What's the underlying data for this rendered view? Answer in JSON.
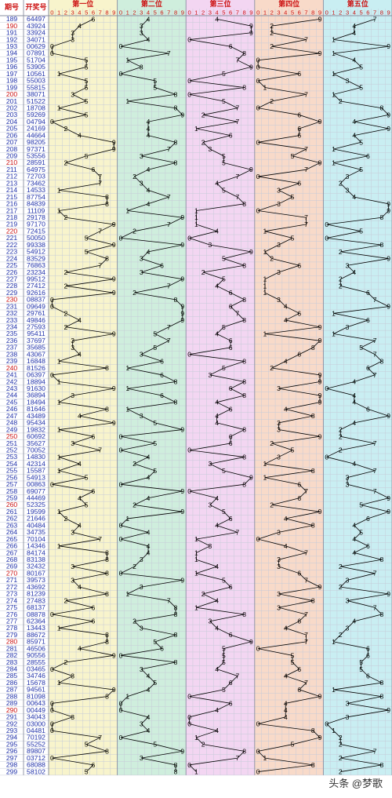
{
  "header": {
    "period_col": "期号",
    "draw_col": "开奖号",
    "positions": [
      "第一位",
      "第二位",
      "第三位",
      "第四位",
      "第五位"
    ]
  },
  "colors": {
    "zones": [
      "#f8f4cc",
      "#cfeedd",
      "#f3d6f2",
      "#f8dac9",
      "#c9eef2"
    ],
    "grid": "#c6cbd8",
    "line": "#000000",
    "header_text": "#cc1111",
    "period_red": "#cc1111",
    "period_blue": "#2233aa"
  },
  "watermark": "头条 @梦歌",
  "chart_data": {
    "type": "line",
    "title": "",
    "xlabel": "",
    "ylabel": "",
    "x_ticks": [
      "0",
      "1",
      "2",
      "3",
      "4",
      "5",
      "6",
      "7",
      "8",
      "9"
    ],
    "xlim": [
      0,
      9
    ],
    "grid": true,
    "rows": [
      {
        "period": "189",
        "draw": "64497"
      },
      {
        "period": "190",
        "draw": "43924"
      },
      {
        "period": "191",
        "draw": "33924"
      },
      {
        "period": "192",
        "draw": "34071"
      },
      {
        "period": "193",
        "draw": "00629"
      },
      {
        "period": "194",
        "draw": "07891"
      },
      {
        "period": "195",
        "draw": "51704"
      },
      {
        "period": "196",
        "draw": "53905"
      },
      {
        "period": "197",
        "draw": "10561"
      },
      {
        "period": "198",
        "draw": "55003"
      },
      {
        "period": "199",
        "draw": "55815"
      },
      {
        "period": "200",
        "draw": "38071"
      },
      {
        "period": "201",
        "draw": "51522"
      },
      {
        "period": "202",
        "draw": "18708"
      },
      {
        "period": "203",
        "draw": "59269"
      },
      {
        "period": "204",
        "draw": "04794"
      },
      {
        "period": "205",
        "draw": "24169"
      },
      {
        "period": "206",
        "draw": "44664"
      },
      {
        "period": "207",
        "draw": "98205"
      },
      {
        "period": "208",
        "draw": "97371"
      },
      {
        "period": "209",
        "draw": "53556"
      },
      {
        "period": "210",
        "draw": "28591"
      },
      {
        "period": "211",
        "draw": "64975"
      },
      {
        "period": "212",
        "draw": "72703"
      },
      {
        "period": "213",
        "draw": "73462"
      },
      {
        "period": "214",
        "draw": "14533"
      },
      {
        "period": "215",
        "draw": "87754"
      },
      {
        "period": "216",
        "draw": "84839"
      },
      {
        "period": "217",
        "draw": "11109"
      },
      {
        "period": "218",
        "draw": "29178"
      },
      {
        "period": "219",
        "draw": "97170"
      },
      {
        "period": "220",
        "draw": "72415"
      },
      {
        "period": "221",
        "draw": "50050"
      },
      {
        "period": "222",
        "draw": "99338"
      },
      {
        "period": "223",
        "draw": "54912"
      },
      {
        "period": "224",
        "draw": "83529"
      },
      {
        "period": "225",
        "draw": "76863"
      },
      {
        "period": "226",
        "draw": "23234"
      },
      {
        "period": "227",
        "draw": "99512"
      },
      {
        "period": "228",
        "draw": "27412"
      },
      {
        "period": "229",
        "draw": "92616"
      },
      {
        "period": "230",
        "draw": "08837"
      },
      {
        "period": "231",
        "draw": "09649"
      },
      {
        "period": "232",
        "draw": "29761"
      },
      {
        "period": "233",
        "draw": "49846"
      },
      {
        "period": "234",
        "draw": "27593"
      },
      {
        "period": "235",
        "draw": "95411"
      },
      {
        "period": "236",
        "draw": "37697"
      },
      {
        "period": "237",
        "draw": "35685"
      },
      {
        "period": "238",
        "draw": "43067"
      },
      {
        "period": "239",
        "draw": "16848"
      },
      {
        "period": "240",
        "draw": "81526"
      },
      {
        "period": "241",
        "draw": "06397"
      },
      {
        "period": "242",
        "draw": "18894"
      },
      {
        "period": "243",
        "draw": "91630"
      },
      {
        "period": "244",
        "draw": "36894"
      },
      {
        "period": "245",
        "draw": "18494"
      },
      {
        "period": "246",
        "draw": "81646"
      },
      {
        "period": "247",
        "draw": "43489"
      },
      {
        "period": "248",
        "draw": "95434"
      },
      {
        "period": "249",
        "draw": "19832"
      },
      {
        "period": "250",
        "draw": "60692"
      },
      {
        "period": "251",
        "draw": "35627"
      },
      {
        "period": "252",
        "draw": "70052"
      },
      {
        "period": "253",
        "draw": "14830"
      },
      {
        "period": "254",
        "draw": "42314"
      },
      {
        "period": "255",
        "draw": "15587"
      },
      {
        "period": "256",
        "draw": "54913"
      },
      {
        "period": "257",
        "draw": "00863"
      },
      {
        "period": "258",
        "draw": "69077"
      },
      {
        "period": "259",
        "draw": "44469"
      },
      {
        "period": "260",
        "draw": "52325"
      },
      {
        "period": "261",
        "draw": "19599"
      },
      {
        "period": "262",
        "draw": "21646"
      },
      {
        "period": "263",
        "draw": "40484"
      },
      {
        "period": "264",
        "draw": "34735"
      },
      {
        "period": "265",
        "draw": "70104"
      },
      {
        "period": "266",
        "draw": "14346"
      },
      {
        "period": "267",
        "draw": "84174"
      },
      {
        "period": "268",
        "draw": "83138"
      },
      {
        "period": "269",
        "draw": "32432"
      },
      {
        "period": "270",
        "draw": "80167"
      },
      {
        "period": "271",
        "draw": "39573"
      },
      {
        "period": "272",
        "draw": "43692"
      },
      {
        "period": "273",
        "draw": "81239"
      },
      {
        "period": "274",
        "draw": "27483"
      },
      {
        "period": "275",
        "draw": "68137"
      },
      {
        "period": "276",
        "draw": "08878"
      },
      {
        "period": "277",
        "draw": "62364"
      },
      {
        "period": "278",
        "draw": "13443"
      },
      {
        "period": "279",
        "draw": "88672"
      },
      {
        "period": "280",
        "draw": "85971"
      },
      {
        "period": "281",
        "draw": "46506"
      },
      {
        "period": "282",
        "draw": "90556"
      },
      {
        "period": "283",
        "draw": "28555"
      },
      {
        "period": "284",
        "draw": "03465"
      },
      {
        "period": "285",
        "draw": "34746"
      },
      {
        "period": "286",
        "draw": "15678"
      },
      {
        "period": "287",
        "draw": "94561"
      },
      {
        "period": "288",
        "draw": "81098"
      },
      {
        "period": "289",
        "draw": "00643"
      },
      {
        "period": "290",
        "draw": "00449"
      },
      {
        "period": "291",
        "draw": "34043"
      },
      {
        "period": "292",
        "draw": "03000"
      },
      {
        "period": "293",
        "draw": "04481"
      },
      {
        "period": "294",
        "draw": "70192"
      },
      {
        "period": "295",
        "draw": "55252"
      },
      {
        "period": "296",
        "draw": "89807"
      },
      {
        "period": "297",
        "draw": "03712"
      },
      {
        "period": "298",
        "draw": "68088"
      },
      {
        "period": "299",
        "draw": "58102"
      }
    ]
  }
}
